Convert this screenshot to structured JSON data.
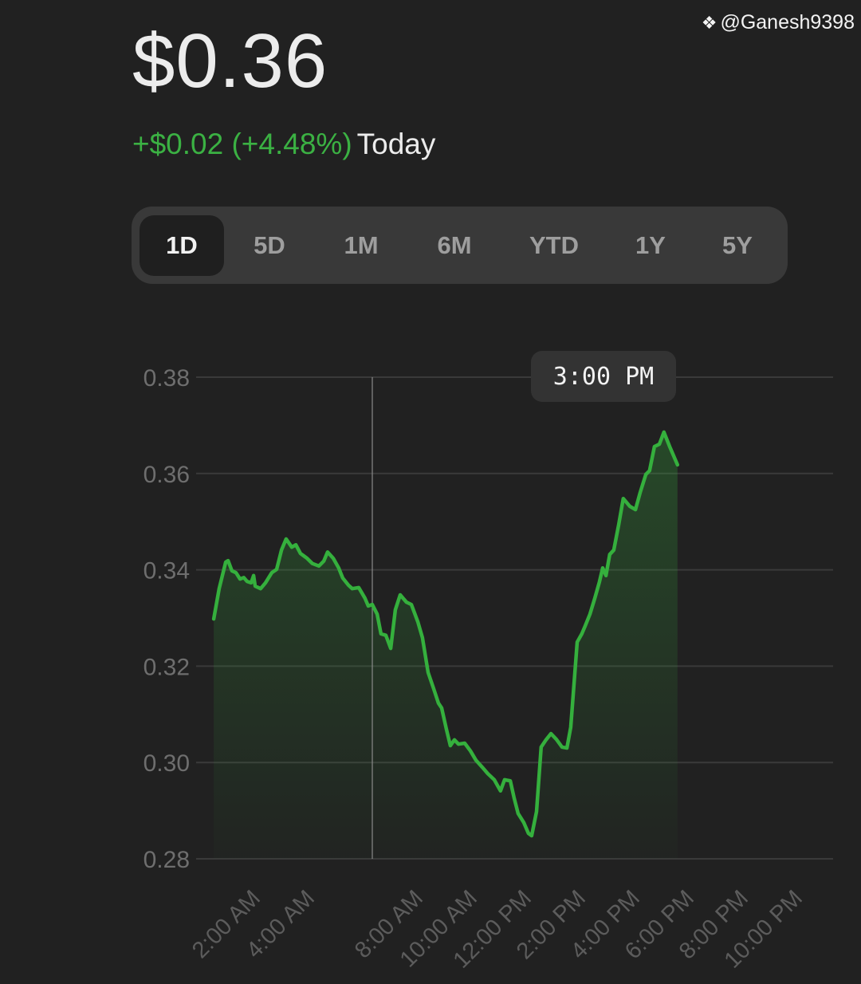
{
  "header": {
    "price": "$0.36",
    "change": "+$0.02 (+4.48%)",
    "period": "Today"
  },
  "tabs": [
    {
      "label": "1D",
      "active": true
    },
    {
      "label": "5D",
      "active": false
    },
    {
      "label": "1M",
      "active": false
    },
    {
      "label": "6M",
      "active": false
    },
    {
      "label": "YTD",
      "active": false
    },
    {
      "label": "1Y",
      "active": false
    },
    {
      "label": "5Y",
      "active": false
    }
  ],
  "tooltip": {
    "label": "3:00 PM"
  },
  "watermark": "@Ganesh9398",
  "colors": {
    "background": "#212121",
    "line": "#35b03d",
    "positive": "#3bb143",
    "grid": "#3a3a3a"
  },
  "chart_data": {
    "type": "line",
    "title": "",
    "xlabel": "",
    "ylabel": "",
    "ylim": [
      0.28,
      0.38
    ],
    "xlim_hours": [
      -0.47,
      23.03
    ],
    "yticks": [
      "0.38",
      "0.36",
      "0.34",
      "0.32",
      "0.30",
      "0.28"
    ],
    "ytick_values": [
      0.38,
      0.36,
      0.34,
      0.32,
      0.3,
      0.28
    ],
    "xticks": [
      {
        "hour": 2,
        "label": "2:00 AM"
      },
      {
        "hour": 4,
        "label": "4:00 AM"
      },
      {
        "hour": 8,
        "label": "8:00 AM"
      },
      {
        "hour": 10,
        "label": "10:00 AM"
      },
      {
        "hour": 12,
        "label": "12:00 PM"
      },
      {
        "hour": 14,
        "label": "2:00 PM"
      },
      {
        "hour": 16,
        "label": "4:00 PM"
      },
      {
        "hour": 18,
        "label": "6:00 PM"
      },
      {
        "hour": 20,
        "label": "8:00 PM"
      },
      {
        "hour": 22,
        "label": "10:00 PM"
      }
    ],
    "crosshair_hour": 6.03,
    "grid": true,
    "series": [
      {
        "name": "Price",
        "hours": [
          0.18,
          0.38,
          0.62,
          0.71,
          0.85,
          1.0,
          1.15,
          1.29,
          1.41,
          1.56,
          1.65,
          1.71,
          1.91,
          2.09,
          2.32,
          2.5,
          2.68,
          2.85,
          3.06,
          3.21,
          3.38,
          3.62,
          3.82,
          4.06,
          4.24,
          4.38,
          4.59,
          4.79,
          4.94,
          5.15,
          5.29,
          5.53,
          5.76,
          5.88,
          6.03,
          6.21,
          6.35,
          6.53,
          6.71,
          6.88,
          7.06,
          7.29,
          7.47,
          7.71,
          7.88,
          8.09,
          8.29,
          8.47,
          8.59,
          8.76,
          8.91,
          9.06,
          9.21,
          9.44,
          9.65,
          9.85,
          10.09,
          10.29,
          10.53,
          10.76,
          10.91,
          11.12,
          11.26,
          11.41,
          11.62,
          11.79,
          11.91,
          12.09,
          12.26,
          12.44,
          12.62,
          12.82,
          13.03,
          13.21,
          13.35,
          13.59,
          13.76,
          13.88,
          14.06,
          14.24,
          14.41,
          14.53,
          14.65,
          14.79,
          14.94,
          15.12,
          15.29,
          15.53,
          15.74,
          15.91,
          16.12,
          16.26,
          16.44,
          16.62,
          16.79,
          17.0,
          17.29
        ],
        "values": [
          0.3298,
          0.3361,
          0.3416,
          0.3419,
          0.3398,
          0.3394,
          0.3381,
          0.3384,
          0.3376,
          0.3373,
          0.3388,
          0.3366,
          0.3361,
          0.3373,
          0.3394,
          0.3401,
          0.3441,
          0.3464,
          0.3447,
          0.3452,
          0.3434,
          0.3424,
          0.3413,
          0.3408,
          0.3418,
          0.3437,
          0.3424,
          0.3404,
          0.3383,
          0.3368,
          0.3361,
          0.3363,
          0.3341,
          0.3325,
          0.3328,
          0.3308,
          0.3267,
          0.3264,
          0.3237,
          0.3317,
          0.3348,
          0.3333,
          0.3328,
          0.3292,
          0.3259,
          0.3187,
          0.3154,
          0.3123,
          0.3113,
          0.307,
          0.3035,
          0.3047,
          0.3038,
          0.304,
          0.3024,
          0.3005,
          0.299,
          0.2977,
          0.2964,
          0.2941,
          0.2964,
          0.2962,
          0.2927,
          0.2894,
          0.2875,
          0.2853,
          0.2848,
          0.2898,
          0.3032,
          0.3047,
          0.306,
          0.3048,
          0.3032,
          0.303,
          0.3073,
          0.325,
          0.3267,
          0.3283,
          0.3308,
          0.3341,
          0.3375,
          0.3404,
          0.3388,
          0.3432,
          0.3441,
          0.3494,
          0.3548,
          0.3532,
          0.3525,
          0.356,
          0.3598,
          0.3606,
          0.3656,
          0.3661,
          0.3686,
          0.3656,
          0.3618
        ]
      }
    ]
  }
}
